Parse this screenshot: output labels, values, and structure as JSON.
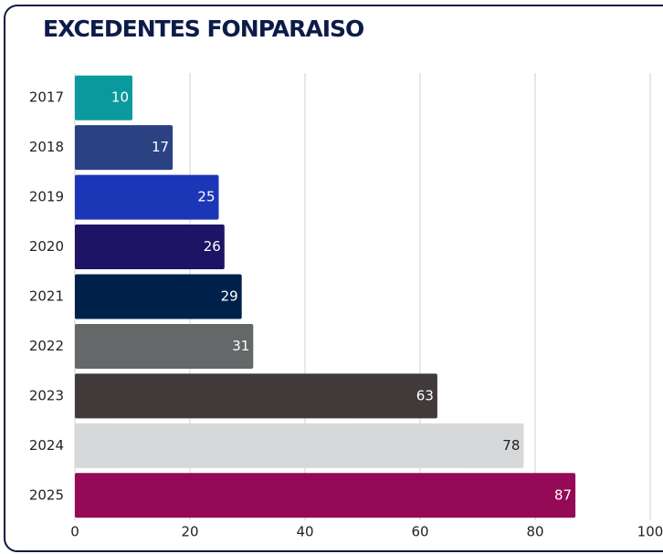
{
  "chart_data": {
    "type": "bar",
    "orientation": "horizontal",
    "title": "EXCEDENTES FONPARAISO",
    "categories": [
      "2017",
      "2018",
      "2019",
      "2020",
      "2021",
      "2022",
      "2023",
      "2024",
      "2025"
    ],
    "values": [
      10,
      17,
      25,
      26,
      29,
      31,
      63,
      78,
      87
    ],
    "colors": [
      "#0a9a9e",
      "#2a4282",
      "#1b36b6",
      "#1e1466",
      "#00214b",
      "#646869",
      "#413a3a",
      "#d7d8da",
      "#940a56"
    ],
    "value_label_colors": [
      "#ffffff",
      "#ffffff",
      "#ffffff",
      "#ffffff",
      "#ffffff",
      "#ffffff",
      "#ffffff",
      "#222222",
      "#ffffff"
    ],
    "xlim": [
      0,
      100
    ],
    "xticks": [
      0,
      20,
      40,
      60,
      80,
      100
    ],
    "grid": true
  }
}
